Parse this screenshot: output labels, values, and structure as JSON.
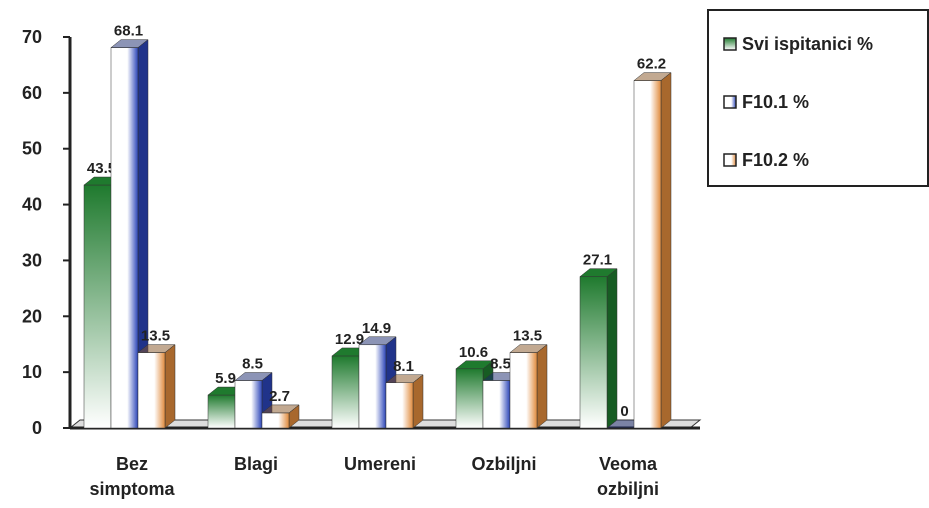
{
  "chart_data": {
    "type": "bar3d",
    "categories": [
      "Bez simptoma",
      "Blagi",
      "Umereni",
      "Ozbiljni",
      "Veoma ozbiljni"
    ],
    "series": [
      {
        "name": "Svi ispitanici %",
        "color": "#1f7a2e",
        "values": [
          43.5,
          5.9,
          12.9,
          10.6,
          27.1
        ]
      },
      {
        "name": "F10.1 %",
        "color": "#2a44b8",
        "values": [
          68.1,
          8.5,
          14.9,
          8.5,
          0
        ]
      },
      {
        "name": "F10.2 %",
        "color": "#e08a3c",
        "values": [
          13.5,
          2.7,
          8.1,
          13.5,
          62.2
        ]
      }
    ],
    "ylim": [
      0,
      70
    ],
    "yticks": [
      0,
      10,
      20,
      30,
      40,
      50,
      60,
      70
    ],
    "legend": "right",
    "grid": false
  }
}
